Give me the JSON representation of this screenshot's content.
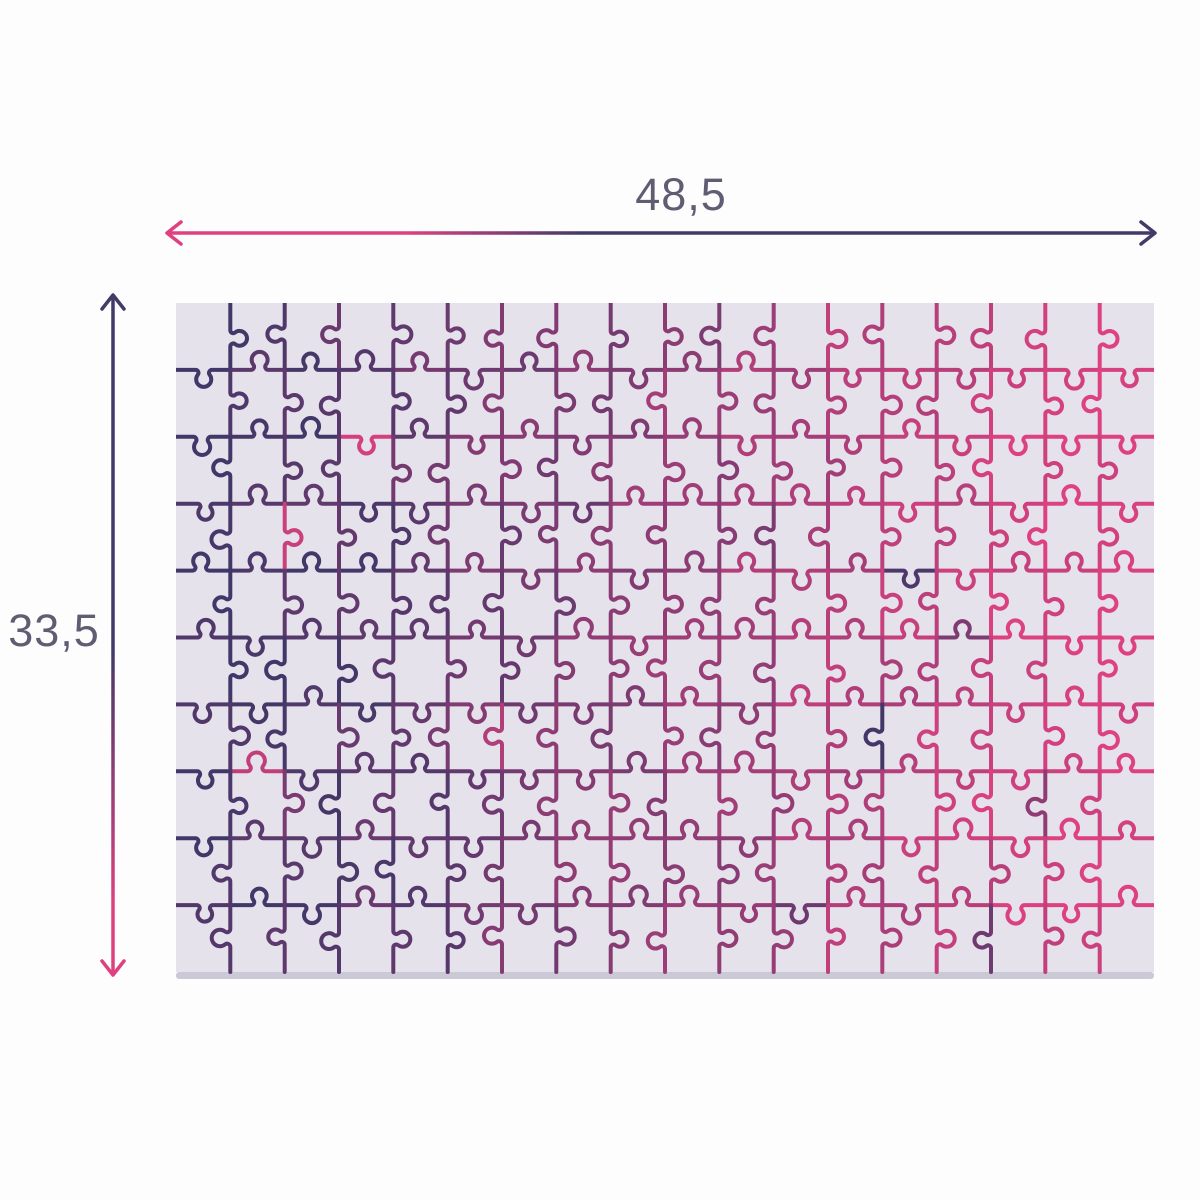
{
  "diagram": {
    "width_label": "48,5",
    "height_label": "33,5",
    "label_color": "#605d72",
    "arrow_colors": {
      "pink": "#de4180",
      "dark": "#433a68"
    },
    "puzzle": {
      "cols": 18,
      "rows": 10,
      "background_color": "#e5e2ec",
      "shadow_color": "#ccc9d6",
      "line_color_dark": "#413768",
      "line_color_pink": "#de4180",
      "line_width": 4,
      "seed": 20
    }
  }
}
